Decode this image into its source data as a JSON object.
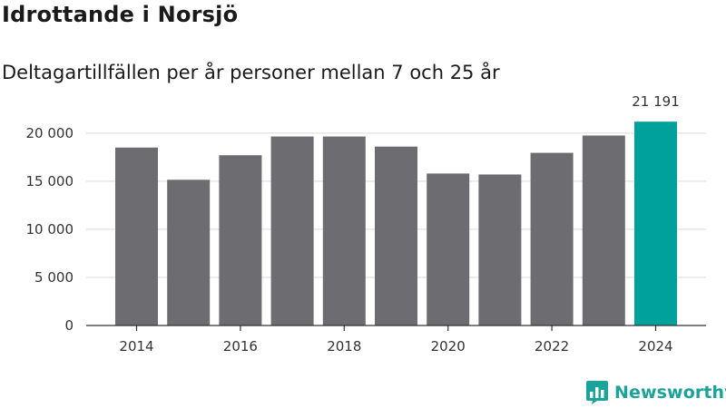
{
  "title": "Idrottande i Norsjö",
  "subtitle": "Deltagartillfällen per år personer mellan 7 och 25 år",
  "brand": {
    "name": "Newsworthy",
    "icon": "newsworthy-logo-icon",
    "color": "#1aa39a"
  },
  "chart_data": {
    "type": "bar",
    "title": "Idrottande i Norsjö",
    "subtitle": "Deltagartillfällen per år personer mellan 7 och 25 år",
    "categories": [
      "2014",
      "2015",
      "2016",
      "2017",
      "2018",
      "2019",
      "2020",
      "2021",
      "2022",
      "2023",
      "2024"
    ],
    "values": [
      18500,
      15150,
      17700,
      19650,
      19650,
      18600,
      15800,
      15700,
      17950,
      19750,
      21191
    ],
    "x_tick_labels": [
      "2014",
      "2016",
      "2018",
      "2020",
      "2022",
      "2024"
    ],
    "ylim": [
      0,
      23000
    ],
    "yticks": [
      0,
      5000,
      10000,
      15000,
      20000
    ],
    "ytick_labels": [
      "0",
      "5 000",
      "10 000",
      "15 000",
      "20 000"
    ],
    "data_labels": [
      {
        "category": "2024",
        "text": "21 191"
      }
    ],
    "bar_color": "#6d6c70",
    "highlight_color": "#00a19a",
    "highlight_category": "2024",
    "grid": true
  }
}
